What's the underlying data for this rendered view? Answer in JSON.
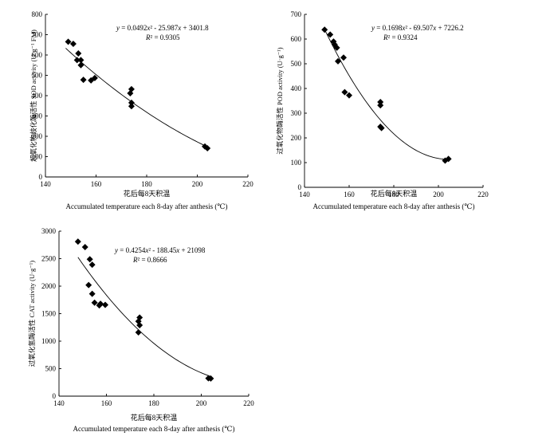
{
  "chart_data": [
    {
      "type": "scatter",
      "ylabel": "超氧化物歧化酶活性 SOD activity (U·g⁻¹ FM)",
      "xlabel_cn": "花后每8天积温",
      "xlabel_en": "Accumulated temperature each 8-day after anthesis (℃)",
      "xlim": [
        140,
        220
      ],
      "ylim": [
        0,
        800
      ],
      "xticks": [
        "140",
        "160",
        "180",
        "200",
        "220"
      ],
      "yticks": [
        "0",
        "100",
        "200",
        "300",
        "400",
        "500",
        "600",
        "700",
        "800"
      ],
      "equation": "y = 0.0492x² - 25.987x + 3401.8",
      "r2": "R² = 0.9305",
      "fit": {
        "a": 0.0492,
        "b": -25.987,
        "c": 3401.8,
        "x_range": [
          148,
          204
        ]
      },
      "points": [
        {
          "x": 149,
          "y": 665
        },
        {
          "x": 151,
          "y": 655
        },
        {
          "x": 153,
          "y": 608
        },
        {
          "x": 152.5,
          "y": 575
        },
        {
          "x": 154,
          "y": 575
        },
        {
          "x": 154,
          "y": 550
        },
        {
          "x": 155,
          "y": 478
        },
        {
          "x": 158,
          "y": 475
        },
        {
          "x": 159.5,
          "y": 487
        },
        {
          "x": 174,
          "y": 432
        },
        {
          "x": 173.5,
          "y": 412
        },
        {
          "x": 174,
          "y": 365
        },
        {
          "x": 174,
          "y": 348
        },
        {
          "x": 203,
          "y": 150
        },
        {
          "x": 204,
          "y": 141
        }
      ]
    },
    {
      "type": "scatter",
      "ylabel": "过氧化物酶活性 POD activity (U·g⁻¹)",
      "xlabel_cn": "花后每8天积温",
      "xlabel_en": "Accumulated temperature each 8-day after anthesis (℃)",
      "xlim": [
        140,
        220
      ],
      "ylim": [
        0,
        700
      ],
      "xticks": [
        "140",
        "160",
        "180",
        "200",
        "220"
      ],
      "yticks": [
        "0",
        "100",
        "200",
        "300",
        "400",
        "500",
        "600",
        "700"
      ],
      "equation": "y = 0.1698x² - 69.507x + 7226.2",
      "r2": "R² = 0.9324",
      "fit": {
        "a": 0.1698,
        "b": -69.507,
        "c": 7226.2,
        "x_range": [
          149,
          203
        ]
      },
      "points": [
        {
          "x": 149,
          "y": 638
        },
        {
          "x": 151.5,
          "y": 618
        },
        {
          "x": 153,
          "y": 590
        },
        {
          "x": 153.5,
          "y": 578
        },
        {
          "x": 154.5,
          "y": 565
        },
        {
          "x": 155,
          "y": 510
        },
        {
          "x": 157.5,
          "y": 525
        },
        {
          "x": 158,
          "y": 385
        },
        {
          "x": 160,
          "y": 372
        },
        {
          "x": 174,
          "y": 345
        },
        {
          "x": 174,
          "y": 332
        },
        {
          "x": 174,
          "y": 245
        },
        {
          "x": 174.5,
          "y": 240
        },
        {
          "x": 203,
          "y": 108
        },
        {
          "x": 204.5,
          "y": 115
        }
      ]
    },
    {
      "type": "scatter",
      "ylabel": "过氧化氢酶活性 CAT activity (U·g⁻¹)",
      "xlabel_cn": "花后每8天积温",
      "xlabel_en": "Accumulated temperature each 8-day after anthesis (℃)",
      "xlim": [
        140,
        220
      ],
      "ylim": [
        0,
        3000
      ],
      "xticks": [
        "140",
        "160",
        "180",
        "200",
        "220"
      ],
      "yticks": [
        "0",
        "500",
        "1000",
        "1500",
        "2000",
        "2500",
        "3000"
      ],
      "equation": "y = 0.4254x² - 188.45x + 21098",
      "r2": "R² = 0.8666",
      "fit": {
        "a": 0.4254,
        "b": -188.45,
        "c": 21098,
        "x_range": [
          148,
          204
        ]
      },
      "points": [
        {
          "x": 148,
          "y": 2810
        },
        {
          "x": 151,
          "y": 2710
        },
        {
          "x": 153,
          "y": 2490
        },
        {
          "x": 154,
          "y": 2390
        },
        {
          "x": 152.5,
          "y": 2020
        },
        {
          "x": 154,
          "y": 1860
        },
        {
          "x": 155,
          "y": 1700
        },
        {
          "x": 157,
          "y": 1650
        },
        {
          "x": 157.5,
          "y": 1680
        },
        {
          "x": 159.5,
          "y": 1660
        },
        {
          "x": 174,
          "y": 1430
        },
        {
          "x": 173.5,
          "y": 1360
        },
        {
          "x": 174,
          "y": 1290
        },
        {
          "x": 173.5,
          "y": 1160
        },
        {
          "x": 203,
          "y": 325
        },
        {
          "x": 204,
          "y": 320
        }
      ]
    }
  ]
}
